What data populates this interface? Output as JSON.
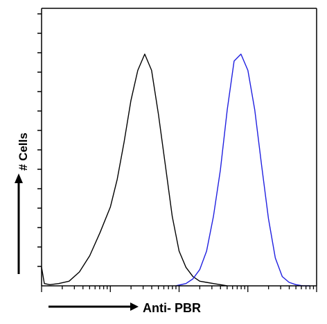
{
  "chart_data": {
    "type": "line",
    "title": "",
    "xlabel": "Anti- PBR",
    "ylabel": "# Cells",
    "x_scale": "log",
    "xlim": [
      0,
      4
    ],
    "ylim": [
      0,
      1
    ],
    "grid": false,
    "legend": "none",
    "y_major_ticks": 14,
    "series": [
      {
        "color": "#000000",
        "x": [
          0.0,
          0.04,
          0.12,
          0.25,
          0.4,
          0.55,
          0.7,
          0.85,
          1.0,
          1.1,
          1.2,
          1.3,
          1.4,
          1.5,
          1.6,
          1.7,
          1.8,
          1.9,
          2.0,
          2.1,
          2.2,
          2.3,
          2.4,
          2.5,
          2.6,
          2.7
        ],
        "y": [
          0.08,
          0.01,
          0.005,
          0.01,
          0.02,
          0.06,
          0.13,
          0.23,
          0.34,
          0.46,
          0.62,
          0.8,
          0.93,
          1.0,
          0.93,
          0.74,
          0.52,
          0.3,
          0.15,
          0.08,
          0.04,
          0.02,
          0.015,
          0.01,
          0.005,
          0.0
        ]
      },
      {
        "color": "#1f1fe0",
        "x": [
          1.95,
          2.1,
          2.2,
          2.3,
          2.4,
          2.5,
          2.6,
          2.7,
          2.8,
          2.9,
          3.0,
          3.1,
          3.2,
          3.3,
          3.4,
          3.5,
          3.6,
          3.7,
          3.8,
          3.9
        ],
        "y": [
          0.0,
          0.01,
          0.03,
          0.07,
          0.15,
          0.3,
          0.5,
          0.76,
          0.97,
          1.0,
          0.93,
          0.76,
          0.52,
          0.29,
          0.12,
          0.04,
          0.015,
          0.005,
          0.0,
          0.0
        ]
      }
    ]
  }
}
